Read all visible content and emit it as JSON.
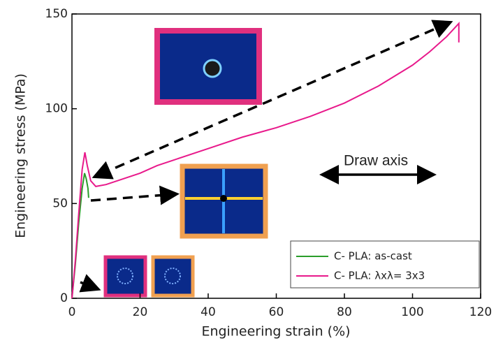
{
  "chart_data": {
    "type": "line",
    "xlabel": "Engineering strain (%)",
    "ylabel": "Engineering stress (MPa)",
    "annotation": "Draw axis",
    "xlim": [
      0,
      120
    ],
    "xticks": [
      0,
      20,
      40,
      60,
      80,
      100,
      120
    ],
    "ylim": [
      0,
      150
    ],
    "yticks": [
      0,
      50,
      100,
      150
    ],
    "legend": "lower right",
    "series": [
      {
        "name": "C- PLA: as-cast",
        "color": "#2a9d2a",
        "x": [
          0,
          1,
          2,
          3,
          3.7,
          4.2,
          4.7,
          4.9
        ],
        "values": [
          0,
          18,
          40,
          58,
          66,
          63,
          58,
          53
        ]
      },
      {
        "name": "C- PLA: λxλ= 3x3",
        "color": "#e8198b",
        "x": [
          0,
          1,
          2,
          3,
          3.8,
          4.5,
          5.5,
          7,
          10,
          15,
          20,
          25,
          30,
          40,
          50,
          60,
          70,
          80,
          90,
          100,
          105,
          110,
          113.6,
          113.6
        ],
        "values": [
          0,
          20,
          45,
          68,
          77,
          70,
          62,
          59,
          60,
          63,
          66,
          70,
          73,
          79,
          85,
          90,
          96,
          103,
          112,
          123,
          130,
          138,
          145,
          135
        ]
      }
    ]
  }
}
